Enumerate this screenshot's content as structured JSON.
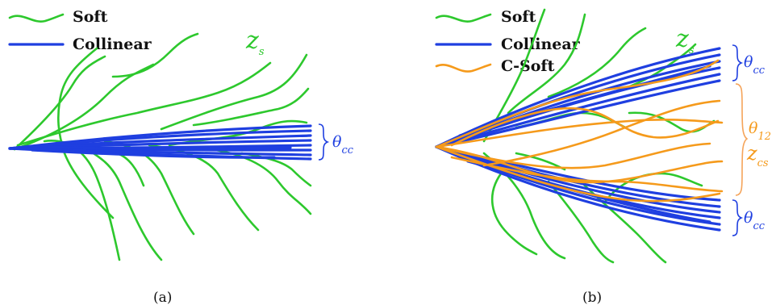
{
  "panel_a": {
    "legend": {
      "soft": "Soft",
      "collinear": "Collinear"
    },
    "label_zs_base": "z",
    "label_zs_sub": "s",
    "label_theta_base": "θ",
    "label_theta_sub": "cc",
    "caption": "(a)"
  },
  "panel_b": {
    "legend": {
      "soft": "Soft",
      "collinear": "Collinear",
      "csoft": "C-Soft"
    },
    "label_zs_base": "z",
    "label_zs_sub": "s",
    "label_theta_top_base": "θ",
    "label_theta_top_sub": "cc",
    "label_theta12_base": "θ",
    "label_theta12_sub": "12",
    "label_zcs_base": "z",
    "label_zcs_sub": "cs",
    "label_theta_bot_base": "θ",
    "label_theta_bot_sub": "cc",
    "caption": "(b)"
  },
  "colors": {
    "soft": "#2dc82d",
    "collinear": "#1f3fe0",
    "csoft": "#f59a1b",
    "brace_orange": "#f5a45a"
  }
}
